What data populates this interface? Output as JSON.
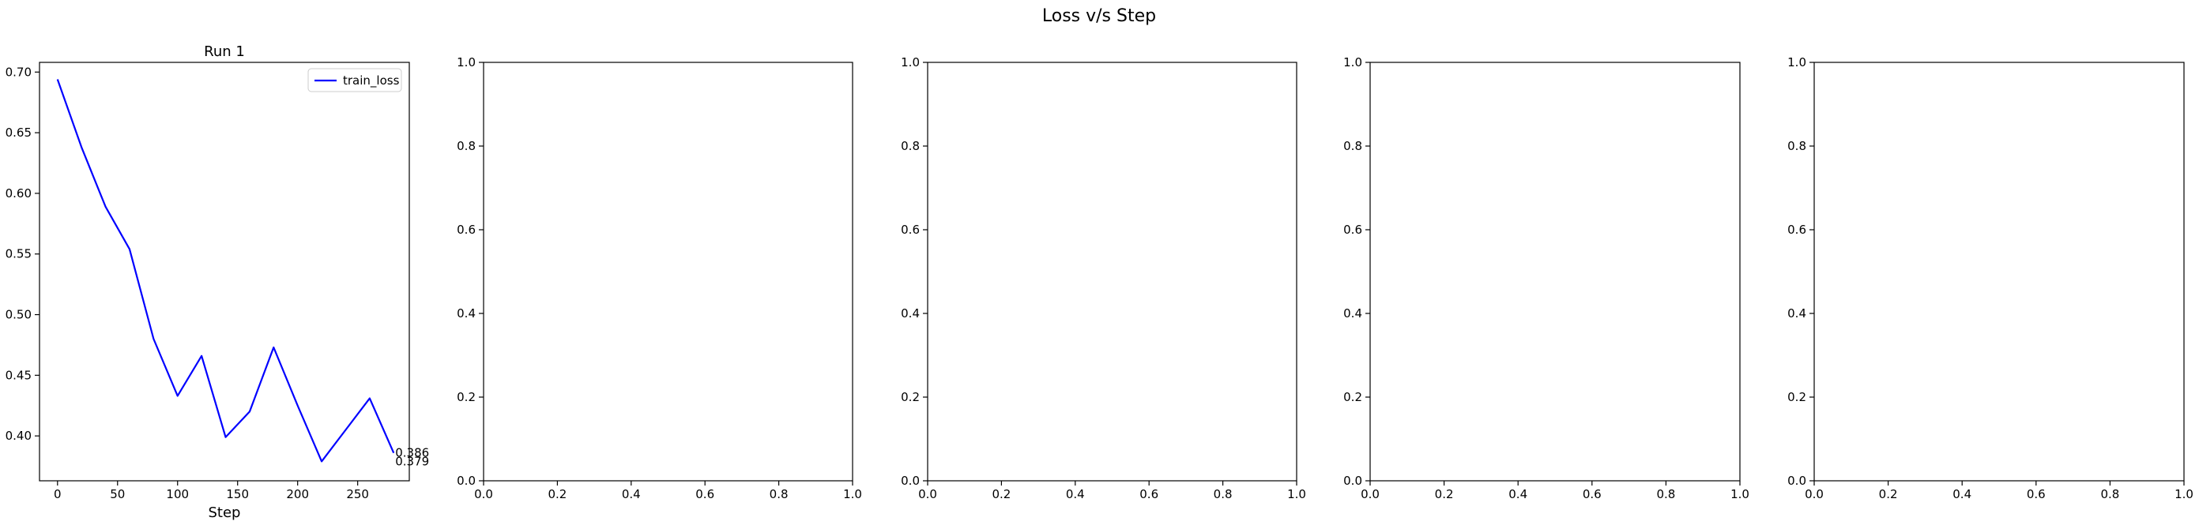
{
  "suptitle": "Loss v/s Step",
  "chart_data": [
    {
      "type": "line",
      "title": "Run 1",
      "xlabel": "Step",
      "ylabel": "",
      "xlim": [
        -15,
        293
      ],
      "ylim": [
        0.363,
        0.708
      ],
      "xticks": [
        0,
        50,
        100,
        150,
        200,
        250
      ],
      "yticks": [
        0.4,
        0.45,
        0.5,
        0.55,
        0.6,
        0.65,
        0.7
      ],
      "xtick_labels": [
        "0",
        "50",
        "100",
        "150",
        "200",
        "250"
      ],
      "ytick_labels": [
        "0.40",
        "0.45",
        "0.50",
        "0.55",
        "0.60",
        "0.65",
        "0.70"
      ],
      "legend": "top-right",
      "grid": false,
      "series": [
        {
          "name": "train_loss",
          "color": "#0000ff",
          "x": [
            0,
            20,
            40,
            60,
            80,
            100,
            120,
            140,
            160,
            180,
            200,
            220,
            240,
            260,
            280
          ],
          "y": [
            0.694,
            0.638,
            0.589,
            0.554,
            0.48,
            0.433,
            0.466,
            0.399,
            0.42,
            0.473,
            0.425,
            0.379,
            0.405,
            0.431,
            0.386
          ]
        }
      ],
      "annotations": [
        {
          "text": "0.386",
          "x": 280,
          "y": 0.386
        },
        {
          "text": "0.379",
          "x": 280,
          "y": 0.379
        }
      ]
    },
    {
      "type": "line",
      "title": "",
      "xlabel": "",
      "ylabel": "",
      "xlim": [
        0,
        1
      ],
      "ylim": [
        0,
        1
      ],
      "xticks": [
        0,
        0.2,
        0.4,
        0.6,
        0.8,
        1.0
      ],
      "yticks": [
        0,
        0.2,
        0.4,
        0.6,
        0.8,
        1.0
      ],
      "xtick_labels": [
        "0.0",
        "0.2",
        "0.4",
        "0.6",
        "0.8",
        "1.0"
      ],
      "ytick_labels": [
        "0.0",
        "0.2",
        "0.4",
        "0.6",
        "0.8",
        "1.0"
      ],
      "series": []
    },
    {
      "type": "line",
      "title": "",
      "xlabel": "",
      "ylabel": "",
      "xlim": [
        0,
        1
      ],
      "ylim": [
        0,
        1
      ],
      "xticks": [
        0,
        0.2,
        0.4,
        0.6,
        0.8,
        1.0
      ],
      "yticks": [
        0,
        0.2,
        0.4,
        0.6,
        0.8,
        1.0
      ],
      "xtick_labels": [
        "0.0",
        "0.2",
        "0.4",
        "0.6",
        "0.8",
        "1.0"
      ],
      "ytick_labels": [
        "0.0",
        "0.2",
        "0.4",
        "0.6",
        "0.8",
        "1.0"
      ],
      "series": []
    },
    {
      "type": "line",
      "title": "",
      "xlabel": "",
      "ylabel": "",
      "xlim": [
        0,
        1
      ],
      "ylim": [
        0,
        1
      ],
      "xticks": [
        0,
        0.2,
        0.4,
        0.6,
        0.8,
        1.0
      ],
      "yticks": [
        0,
        0.2,
        0.4,
        0.6,
        0.8,
        1.0
      ],
      "xtick_labels": [
        "0.0",
        "0.2",
        "0.4",
        "0.6",
        "0.8",
        "1.0"
      ],
      "ytick_labels": [
        "0.0",
        "0.2",
        "0.4",
        "0.6",
        "0.8",
        "1.0"
      ],
      "series": []
    },
    {
      "type": "line",
      "title": "",
      "xlabel": "",
      "ylabel": "",
      "xlim": [
        0,
        1
      ],
      "ylim": [
        0,
        1
      ],
      "xticks": [
        0,
        0.2,
        0.4,
        0.6,
        0.8,
        1.0
      ],
      "yticks": [
        0,
        0.2,
        0.4,
        0.6,
        0.8,
        1.0
      ],
      "xtick_labels": [
        "0.0",
        "0.2",
        "0.4",
        "0.6",
        "0.8",
        "1.0"
      ],
      "ytick_labels": [
        "0.0",
        "0.2",
        "0.4",
        "0.6",
        "0.8",
        "1.0"
      ],
      "series": []
    }
  ]
}
